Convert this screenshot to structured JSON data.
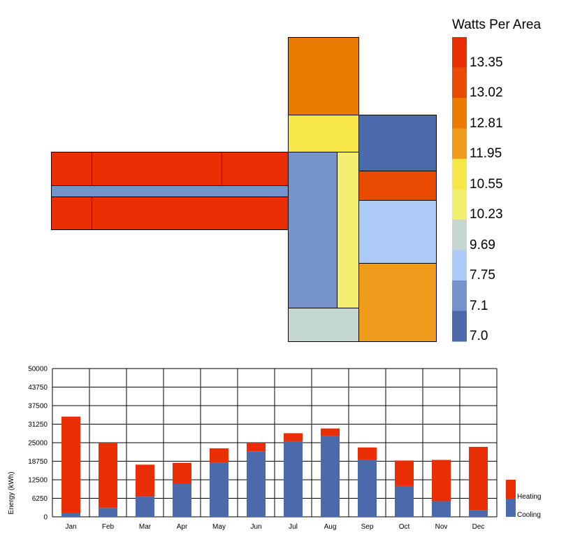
{
  "chart_data": [
    {
      "type": "heatmap",
      "title": "Watts Per Area",
      "scale_labels": [
        "13.35",
        "13.02",
        "12.81",
        "11.95",
        "10.55",
        "10.23",
        "9.69",
        "7.75",
        "7.1",
        "7.0"
      ],
      "scale_colors": [
        "#ea2e03",
        "#ea4b03",
        "#ec7b04",
        "#ef9b1b",
        "#f6e648",
        "#f2ef71",
        "#c3d6d0",
        "#adc9f6",
        "#7393ca",
        "#4a6aab"
      ],
      "zones": [
        {
          "name": "top-left-room",
          "color": "#ea2e03"
        },
        {
          "name": "top-center-room",
          "color": "#ea2e03"
        },
        {
          "name": "top-right-room",
          "color": "#ea2e03"
        },
        {
          "name": "corridor",
          "color": "#7393ca"
        },
        {
          "name": "bottom-left-room",
          "color": "#ea2e03"
        },
        {
          "name": "bottom-right-room",
          "color": "#ea2e03"
        },
        {
          "name": "north-room",
          "color": "#ec7b04"
        },
        {
          "name": "north-lobby",
          "color": "#f6e648"
        },
        {
          "name": "east-north-room",
          "color": "#4a6aab"
        },
        {
          "name": "central-hall",
          "color": "#7393ca"
        },
        {
          "name": "central-strip",
          "color": "#f2ef71"
        },
        {
          "name": "east-strip-room",
          "color": "#ea4b03"
        },
        {
          "name": "east-middle-room",
          "color": "#adc9f6"
        },
        {
          "name": "south-lobby",
          "color": "#c3d6d0"
        },
        {
          "name": "east-south-room",
          "color": "#ef9b1b"
        }
      ]
    },
    {
      "type": "bar",
      "stacked": true,
      "categories": [
        "Jan",
        "Feb",
        "Mar",
        "Apr",
        "May",
        "Jun",
        "Jul",
        "Aug",
        "Sep",
        "Oct",
        "Nov",
        "Dec"
      ],
      "series": [
        {
          "name": "Cooling",
          "color": "#4a6aab",
          "values": [
            1200,
            3000,
            6800,
            11200,
            18200,
            22100,
            25500,
            27200,
            19200,
            10400,
            5300,
            2200
          ]
        },
        {
          "name": "Heating",
          "color": "#ea2e03",
          "values": [
            32600,
            22000,
            10800,
            7000,
            4900,
            2900,
            2700,
            2600,
            4200,
            8600,
            13900,
            21400
          ]
        }
      ],
      "ylabel": "Energy (kWh)",
      "ylim": [
        0,
        50000
      ],
      "yticks": [
        "0",
        "6250",
        "12500",
        "18750",
        "25000",
        "31250",
        "37500",
        "43750",
        "50000"
      ],
      "grid": true,
      "legend": "right"
    }
  ]
}
